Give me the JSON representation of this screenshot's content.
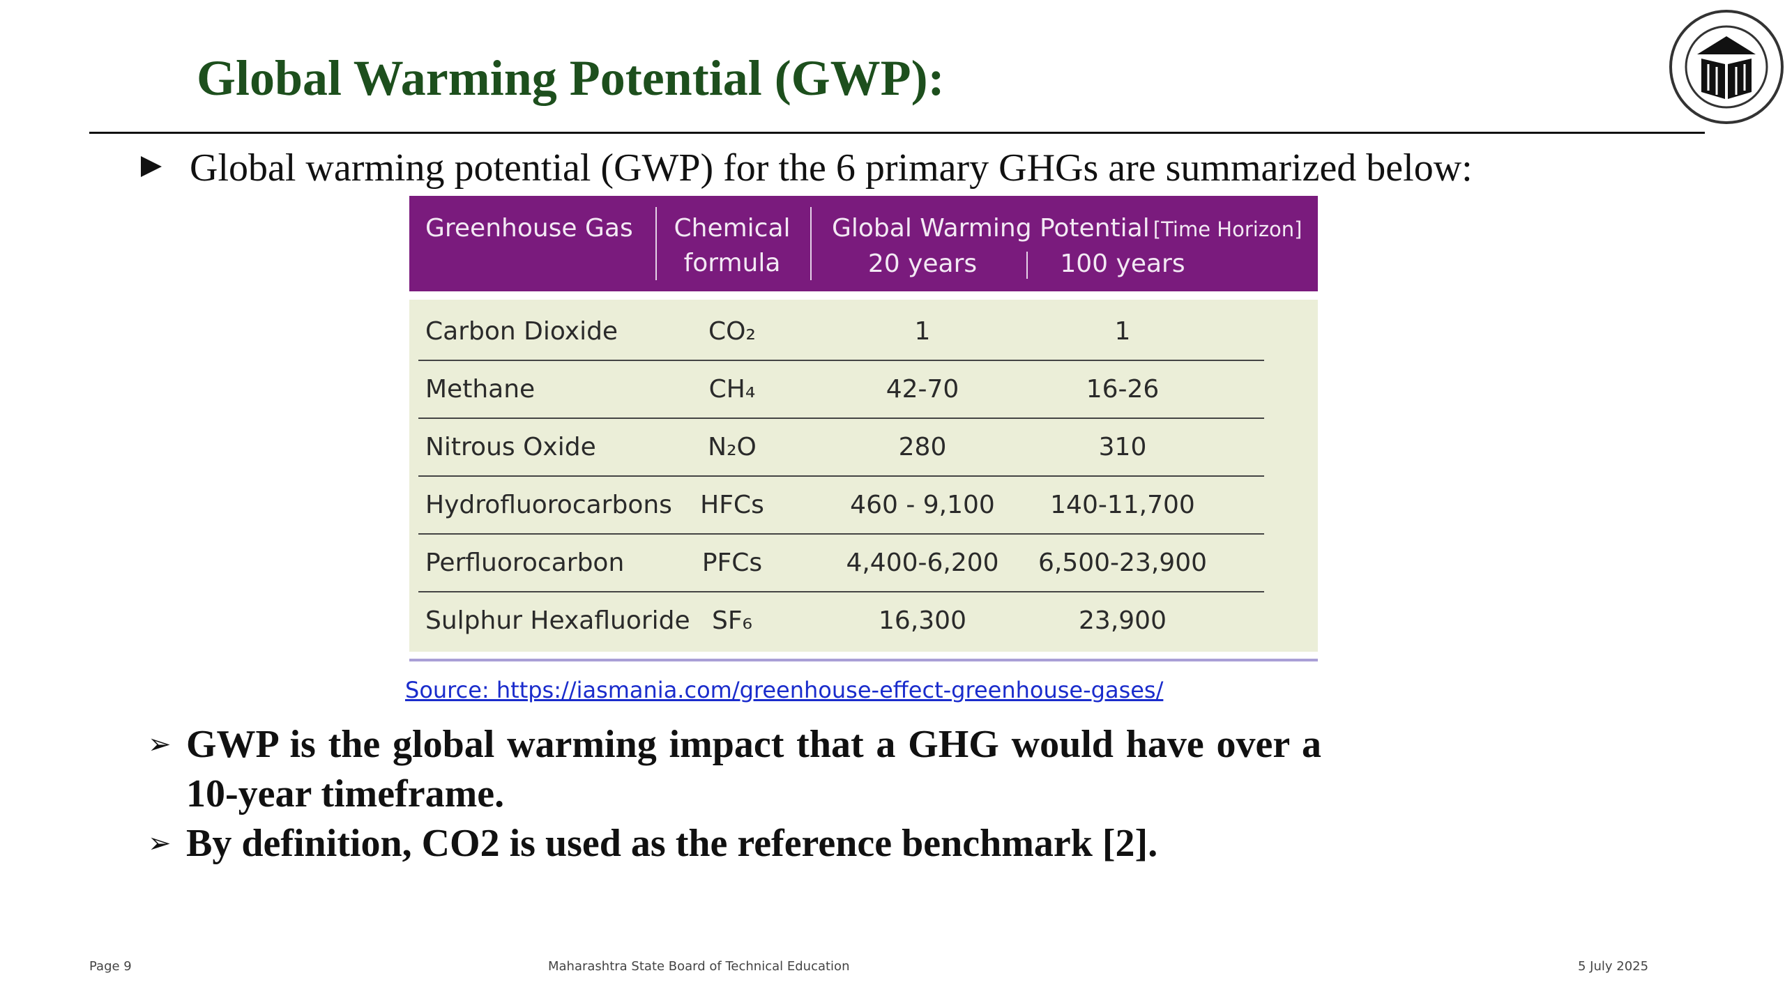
{
  "header": {
    "title": "Global Warming Potential (GWP):"
  },
  "intro": "Global warming potential (GWP) for the 6 primary GHGs are summarized below:",
  "table": {
    "headers": {
      "gas": "Greenhouse Gas",
      "formula": "Chemical\nformula",
      "gwp": "Global Warming Potential",
      "horizon": "[Time Horizon]",
      "y20": "20 years",
      "y100": "100 years"
    },
    "rows": [
      [
        "Carbon Dioxide",
        "CO₂",
        "1",
        "1"
      ],
      [
        "Methane",
        "CH₄",
        "42-70",
        "16-26"
      ],
      [
        "Nitrous Oxide",
        "N₂O",
        "280",
        "310"
      ],
      [
        "Hydrofluorocarbons",
        "HFCs",
        "460 - 9,100",
        "140-11,700"
      ],
      [
        "Perfluorocarbon",
        "PFCs",
        "4,400-6,200",
        "6,500-23,900"
      ],
      [
        "Sulphur Hexafluoride",
        "SF₆",
        "16,300",
        "23,900"
      ]
    ]
  },
  "source": "Source: https://iasmania.com/greenhouse-effect-greenhouse-gases/",
  "bullets": [
    "GWP is the global warming impact that a GHG would  have over a 10-year timeframe.",
    "By definition, CO2 is used as the reference benchmark [2]."
  ],
  "footer": {
    "page": "Page 9",
    "org": "Maharashtra State Board of Technical Education",
    "date": "5 July 2025"
  }
}
